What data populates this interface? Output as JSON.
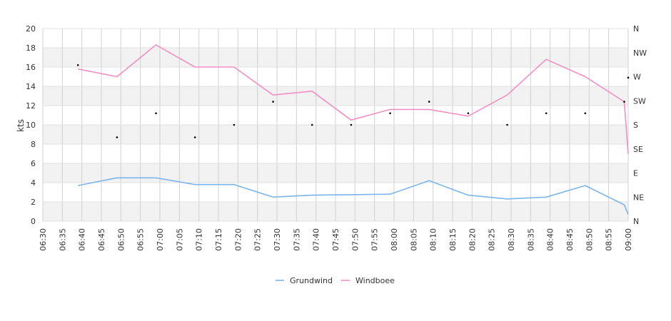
{
  "chart_data": {
    "type": "line",
    "title": "",
    "ylabel": "kts",
    "ylim": [
      0,
      20
    ],
    "y_ticks": [
      "0",
      "2",
      "4",
      "6",
      "8",
      "10",
      "12",
      "14",
      "16",
      "18",
      "20"
    ],
    "x_ticks": [
      "06:30",
      "06:35",
      "06:40",
      "06:45",
      "06:50",
      "06:55",
      "07:00",
      "07:05",
      "07:10",
      "07:15",
      "07:20",
      "07:25",
      "07:30",
      "07:35",
      "07:40",
      "07:45",
      "07:50",
      "07:55",
      "08:00",
      "08:05",
      "08:10",
      "08:15",
      "08:20",
      "08:25",
      "08:30",
      "08:35",
      "08:40",
      "08:45",
      "08:50",
      "08:55",
      "09:00"
    ],
    "direction_ticks": [
      "N",
      "NW",
      "W",
      "SW",
      "S",
      "SE",
      "E",
      "NE",
      "N"
    ],
    "grid": true,
    "legend_position": "bottom",
    "series": [
      {
        "name": "Grundwind",
        "color": "#7cb5ec",
        "points": [
          [
            "06:39",
            3.7
          ],
          [
            "06:49",
            4.5
          ],
          [
            "06:59",
            4.5
          ],
          [
            "07:09",
            3.8
          ],
          [
            "07:19",
            3.8
          ],
          [
            "07:29",
            2.5
          ],
          [
            "07:39",
            2.7
          ],
          [
            "07:49",
            2.75
          ],
          [
            "07:59",
            2.8
          ],
          [
            "08:09",
            4.2
          ],
          [
            "08:19",
            2.7
          ],
          [
            "08:29",
            2.3
          ],
          [
            "08:39",
            2.5
          ],
          [
            "08:49",
            3.7
          ],
          [
            "08:59",
            1.7
          ],
          [
            "09:00",
            0.7
          ]
        ]
      },
      {
        "name": "Windboee",
        "color": "#f28fc3",
        "points": [
          [
            "06:39",
            15.8
          ],
          [
            "06:49",
            15.0
          ],
          [
            "06:59",
            18.3
          ],
          [
            "07:09",
            16.0
          ],
          [
            "07:19",
            16.0
          ],
          [
            "07:29",
            13.1
          ],
          [
            "07:39",
            13.5
          ],
          [
            "07:49",
            10.5
          ],
          [
            "07:59",
            11.6
          ],
          [
            "08:09",
            11.6
          ],
          [
            "08:19",
            10.9
          ],
          [
            "08:29",
            13.1
          ],
          [
            "08:39",
            16.8
          ],
          [
            "08:49",
            15.0
          ],
          [
            "08:59",
            12.4
          ],
          [
            "09:00",
            7.0
          ]
        ]
      }
    ],
    "direction_markers": [
      [
        "06:39",
        16.2
      ],
      [
        "06:49",
        8.7
      ],
      [
        "06:59",
        11.2
      ],
      [
        "07:09",
        8.7
      ],
      [
        "07:19",
        10.0
      ],
      [
        "07:29",
        12.4
      ],
      [
        "07:39",
        10.0
      ],
      [
        "07:49",
        10.0
      ],
      [
        "07:59",
        11.2
      ],
      [
        "08:09",
        12.4
      ],
      [
        "08:19",
        11.2
      ],
      [
        "08:29",
        10.0
      ],
      [
        "08:39",
        11.2
      ],
      [
        "08:49",
        11.2
      ],
      [
        "08:59",
        12.4
      ],
      [
        "09:00",
        14.9
      ]
    ]
  }
}
